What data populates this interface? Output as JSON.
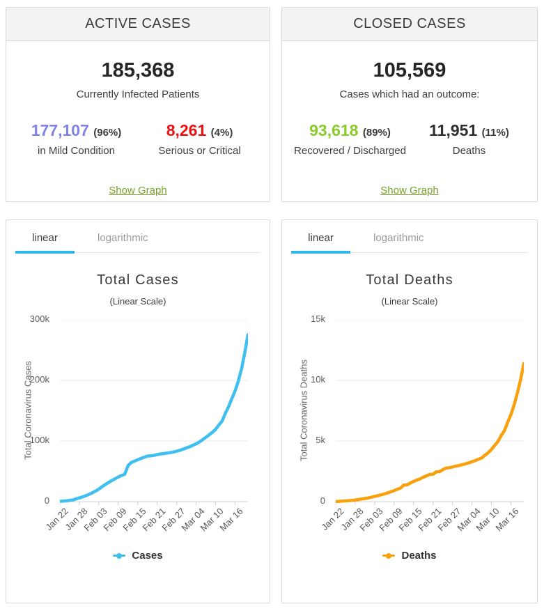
{
  "active_card": {
    "title": "ACTIVE CASES",
    "main_value": "185,368",
    "main_label": "Currently Infected Patients",
    "mild": {
      "value": "177,107",
      "pct": "(96%)",
      "label": "in Mild Condition",
      "color": "#8181e8"
    },
    "serious": {
      "value": "8,261",
      "pct": "(4%)",
      "label": "Serious or Critical",
      "color": "#ed1111"
    },
    "show_graph_label": "Show Graph"
  },
  "closed_card": {
    "title": "CLOSED CASES",
    "main_value": "105,569",
    "main_label": "Cases which had an outcome:",
    "recovered": {
      "value": "93,618",
      "pct": "(89%)",
      "label": "Recovered / Discharged",
      "color": "#8aca2b"
    },
    "deaths": {
      "value": "11,951",
      "pct": "(11%)",
      "label": "Deaths",
      "color": "#2f2f2f"
    },
    "show_graph_label": "Show Graph"
  },
  "tabs": {
    "linear": "linear",
    "logarithmic": "logarithmic"
  },
  "colors": {
    "accent_blue": "#2fb7ea",
    "link_green": "#76a22a",
    "cases_line": "#3ec0ef",
    "deaths_line": "#f9a00d",
    "gridline": "#e9e9e9",
    "axis_line": "#d6d6d6"
  },
  "chart_data": [
    {
      "type": "line",
      "title": "Total Cases",
      "subtitle": "(Linear Scale)",
      "ylabel": "Total Coronavirus Cases",
      "legend": "Cases",
      "color": "#3ec0ef",
      "grid": true,
      "legend_position": "bottom",
      "ylim": [
        0,
        300000
      ],
      "yticks": [
        {
          "v": 0,
          "label": "0"
        },
        {
          "v": 100000,
          "label": "100k"
        },
        {
          "v": 200000,
          "label": "200k"
        },
        {
          "v": 300000,
          "label": "300k"
        }
      ],
      "x_tick_indices": [
        0,
        6,
        12,
        18,
        24,
        30,
        36,
        42,
        48,
        54
      ],
      "x_tick_labels": [
        "Jan 22",
        "Jan 28",
        "Feb 03",
        "Feb 09",
        "Feb 15",
        "Feb 21",
        "Feb 27",
        "Mar 04",
        "Mar 10",
        "Mar 16"
      ],
      "dates": [
        "Jan 22",
        "Jan 23",
        "Jan 24",
        "Jan 25",
        "Jan 26",
        "Jan 27",
        "Jan 28",
        "Jan 29",
        "Jan 30",
        "Jan 31",
        "Feb 01",
        "Feb 02",
        "Feb 03",
        "Feb 04",
        "Feb 05",
        "Feb 06",
        "Feb 07",
        "Feb 08",
        "Feb 09",
        "Feb 10",
        "Feb 11",
        "Feb 12",
        "Feb 13",
        "Feb 14",
        "Feb 15",
        "Feb 16",
        "Feb 17",
        "Feb 18",
        "Feb 19",
        "Feb 20",
        "Feb 21",
        "Feb 22",
        "Feb 23",
        "Feb 24",
        "Feb 25",
        "Feb 26",
        "Feb 27",
        "Feb 28",
        "Feb 29",
        "Mar 01",
        "Mar 02",
        "Mar 03",
        "Mar 04",
        "Mar 05",
        "Mar 06",
        "Mar 07",
        "Mar 08",
        "Mar 09",
        "Mar 10",
        "Mar 11",
        "Mar 12",
        "Mar 13",
        "Mar 14",
        "Mar 15",
        "Mar 16",
        "Mar 17",
        "Mar 18",
        "Mar 19",
        "Mar 20"
      ],
      "values": [
        580,
        845,
        1317,
        2015,
        2800,
        4581,
        6058,
        7813,
        9823,
        11950,
        14553,
        17391,
        20630,
        24545,
        28266,
        31439,
        34876,
        37552,
        40553,
        43099,
        45134,
        59287,
        64438,
        66885,
        69030,
        71224,
        73258,
        75136,
        75639,
        76197,
        77673,
        78651,
        79205,
        80087,
        80828,
        81820,
        83112,
        84615,
        86604,
        88585,
        90443,
        93016,
        95314,
        98425,
        102050,
        106099,
        109991,
        114381,
        118948,
        126214,
        132758,
        145416,
        156475,
        169511,
        182431,
        198234,
        218744,
        244902,
        275550
      ]
    },
    {
      "type": "line",
      "title": "Total Deaths",
      "subtitle": "(Linear Scale)",
      "ylabel": "Total Coronavirus Deaths",
      "legend": "Deaths",
      "color": "#f9a00d",
      "grid": true,
      "legend_position": "bottom",
      "ylim": [
        0,
        15000
      ],
      "yticks": [
        {
          "v": 0,
          "label": "0"
        },
        {
          "v": 5000,
          "label": "5k"
        },
        {
          "v": 10000,
          "label": "10k"
        },
        {
          "v": 15000,
          "label": "15k"
        }
      ],
      "x_tick_indices": [
        0,
        6,
        12,
        18,
        24,
        30,
        36,
        42,
        48,
        54
      ],
      "x_tick_labels": [
        "Jan 22",
        "Jan 28",
        "Feb 03",
        "Feb 09",
        "Feb 15",
        "Feb 21",
        "Feb 27",
        "Mar 04",
        "Mar 10",
        "Mar 16"
      ],
      "dates": [
        "Jan 22",
        "Jan 23",
        "Jan 24",
        "Jan 25",
        "Jan 26",
        "Jan 27",
        "Jan 28",
        "Jan 29",
        "Jan 30",
        "Jan 31",
        "Feb 01",
        "Feb 02",
        "Feb 03",
        "Feb 04",
        "Feb 05",
        "Feb 06",
        "Feb 07",
        "Feb 08",
        "Feb 09",
        "Feb 10",
        "Feb 11",
        "Feb 12",
        "Feb 13",
        "Feb 14",
        "Feb 15",
        "Feb 16",
        "Feb 17",
        "Feb 18",
        "Feb 19",
        "Feb 20",
        "Feb 21",
        "Feb 22",
        "Feb 23",
        "Feb 24",
        "Feb 25",
        "Feb 26",
        "Feb 27",
        "Feb 28",
        "Feb 29",
        "Mar 01",
        "Mar 02",
        "Mar 03",
        "Mar 04",
        "Mar 05",
        "Mar 06",
        "Mar 07",
        "Mar 08",
        "Mar 09",
        "Mar 10",
        "Mar 11",
        "Mar 12",
        "Mar 13",
        "Mar 14",
        "Mar 15",
        "Mar 16",
        "Mar 17",
        "Mar 18",
        "Mar 19",
        "Mar 20"
      ],
      "values": [
        17,
        25,
        41,
        56,
        80,
        106,
        132,
        170,
        213,
        259,
        305,
        362,
        426,
        492,
        564,
        634,
        719,
        813,
        910,
        1018,
        1115,
        1369,
        1383,
        1526,
        1669,
        1775,
        1873,
        2009,
        2126,
        2247,
        2251,
        2458,
        2469,
        2629,
        2763,
        2800,
        2858,
        2923,
        2977,
        3050,
        3117,
        3202,
        3285,
        3387,
        3494,
        3599,
        3827,
        4026,
        4292,
        4633,
        4955,
        5436,
        5837,
        6523,
        7158,
        7960,
        8951,
        10030,
        11398
      ]
    }
  ]
}
